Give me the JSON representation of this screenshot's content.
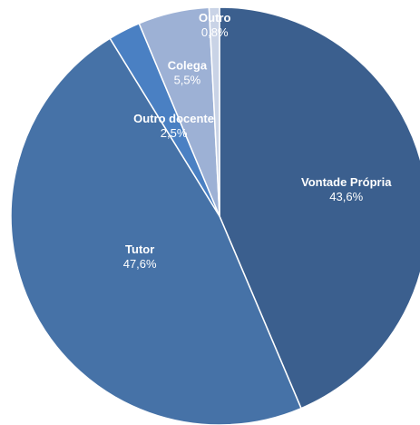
{
  "chart_data": {
    "type": "pie",
    "categories": [
      "Vontade Própria",
      "Tutor",
      "Outro docente",
      "Colega",
      "Outro"
    ],
    "values": [
      43.6,
      47.6,
      2.5,
      5.5,
      0.8
    ],
    "value_labels": [
      "43,6%",
      "47,6%",
      "2,5%",
      "5,5%",
      "0,8%"
    ],
    "colors": [
      "#3b5f8e",
      "#4672a7",
      "#4a80c3",
      "#9db1d5",
      "#c9d3e6"
    ]
  }
}
